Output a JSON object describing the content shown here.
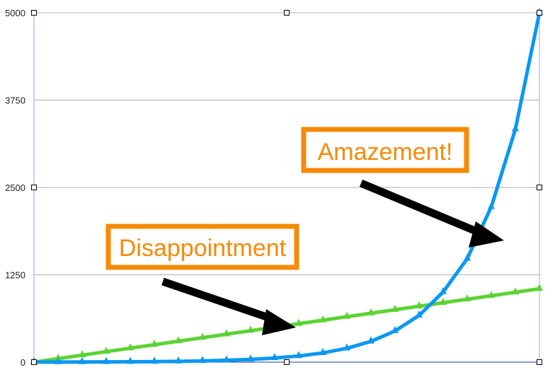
{
  "chart_data": {
    "type": "line",
    "title": "",
    "xlabel": "",
    "ylabel": "",
    "ylim": [
      0,
      5000
    ],
    "yticks": [
      "0",
      "1250",
      "2500",
      "3750",
      "5000"
    ],
    "grid": true,
    "x": [
      0,
      1,
      2,
      3,
      4,
      5,
      6,
      7,
      8,
      9,
      10,
      11,
      12,
      13,
      14,
      15,
      16,
      17,
      18,
      19,
      20,
      21
    ],
    "series": [
      {
        "color": "#5bd334",
        "marker": "triangle",
        "values": [
          0,
          50,
          100,
          150,
          200,
          250,
          300,
          350,
          400,
          450,
          500,
          550,
          600,
          650,
          700,
          750,
          800,
          850,
          900,
          950,
          1000,
          1050
        ]
      },
      {
        "color": "#0a98f2",
        "marker": "triangle",
        "values": [
          1,
          1.5,
          2.3,
          3.4,
          5.1,
          7.7,
          11.6,
          17.4,
          26,
          39,
          59,
          88,
          132,
          198,
          297,
          446,
          669,
          1004,
          1481,
          2222,
          3333,
          5000
        ]
      }
    ],
    "annotations": [
      {
        "text": "Disappointment",
        "color": "#f58a07"
      },
      {
        "text": "Amazement!",
        "color": "#f58a07"
      }
    ]
  }
}
